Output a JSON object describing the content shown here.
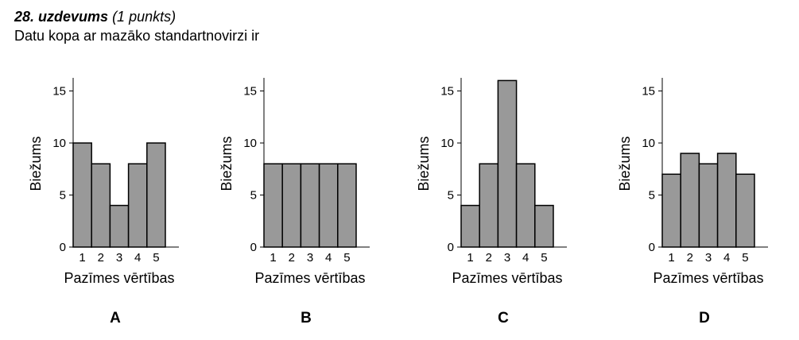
{
  "task": {
    "number": "28. uzdevums",
    "points": "(1 punkts)",
    "question": "Datu kopa ar mazāko standartnovirzi ir"
  },
  "colors": {
    "bar_fill": "#999999",
    "stroke": "#000000"
  },
  "chart_data": [
    {
      "type": "bar",
      "option": "A",
      "categories": [
        "1",
        "2",
        "3",
        "4",
        "5"
      ],
      "values": [
        10,
        8,
        4,
        8,
        10
      ],
      "xlabel": "Pazīmes vērtības",
      "ylabel": "Biežums",
      "yticks": [
        0,
        5,
        10,
        15
      ],
      "ylim": [
        0,
        16
      ],
      "grid": false
    },
    {
      "type": "bar",
      "option": "B",
      "categories": [
        "1",
        "2",
        "3",
        "4",
        "5"
      ],
      "values": [
        8,
        8,
        8,
        8,
        8
      ],
      "xlabel": "Pazīmes vērtības",
      "ylabel": "Biežums",
      "yticks": [
        0,
        5,
        10,
        15
      ],
      "ylim": [
        0,
        16
      ],
      "grid": false
    },
    {
      "type": "bar",
      "option": "C",
      "categories": [
        "1",
        "2",
        "3",
        "4",
        "5"
      ],
      "values": [
        4,
        8,
        16,
        8,
        4
      ],
      "xlabel": "Pazīmes vērtības",
      "ylabel": "Biežums",
      "yticks": [
        0,
        5,
        10,
        15
      ],
      "ylim": [
        0,
        16
      ],
      "grid": false
    },
    {
      "type": "bar",
      "option": "D",
      "categories": [
        "1",
        "2",
        "3",
        "4",
        "5"
      ],
      "values": [
        7,
        9,
        8,
        9,
        7
      ],
      "xlabel": "Pazīmes vērtības",
      "ylabel": "Biežums",
      "yticks": [
        0,
        5,
        10,
        15
      ],
      "ylim": [
        0,
        16
      ],
      "grid": false
    }
  ]
}
